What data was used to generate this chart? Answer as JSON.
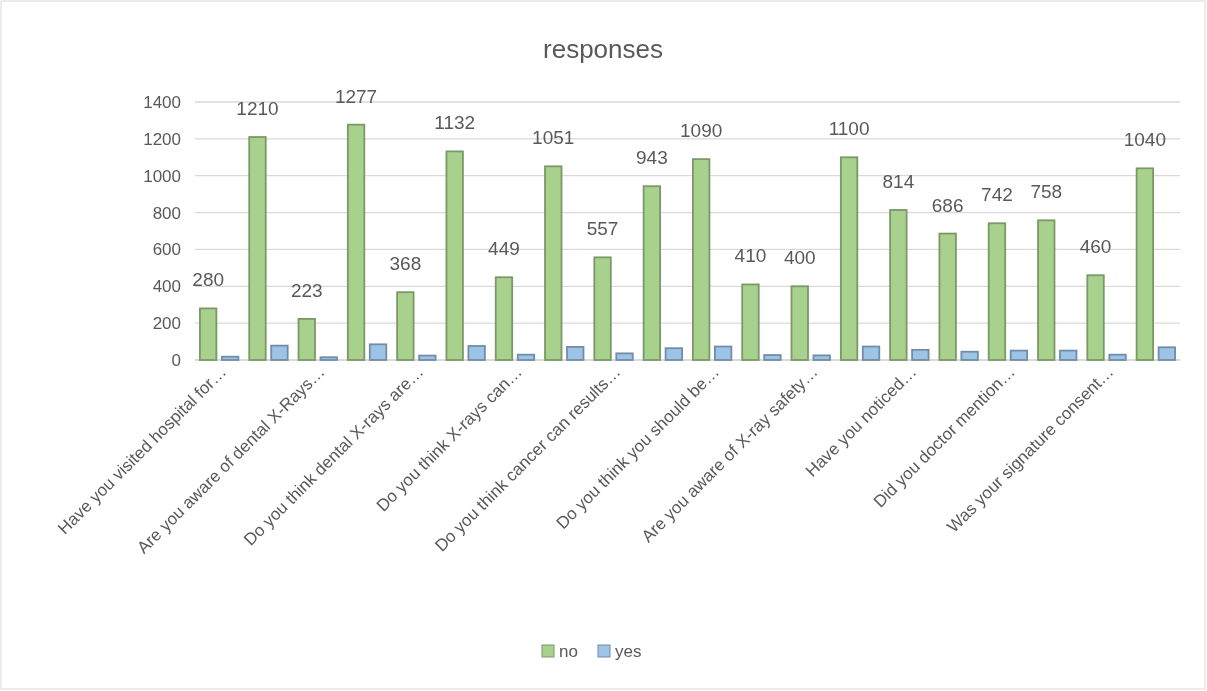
{
  "chart_data": {
    "type": "bar",
    "title": "responses",
    "categories": [
      "Have you visited hospital for…",
      null,
      "Are you aware of dental X-Rays…",
      null,
      "Do you think dental X-rays are…",
      null,
      "Do you think X-rays can…",
      null,
      "Do you think cancer can results…",
      null,
      "Do you think you should be…",
      null,
      "Are you aware of X-ray safety…",
      null,
      "Have you noticed…",
      null,
      "Did you doctor mention…",
      null,
      "Was your signature consent…",
      null
    ],
    "series": [
      {
        "name": "no",
        "color": "#a9d18e",
        "values": [
          280,
          1210,
          223,
          1277,
          368,
          1132,
          449,
          1051,
          557,
          943,
          1090,
          410,
          400,
          1100,
          814,
          686,
          742,
          758,
          460,
          1040
        ],
        "value_labels": [
          "280",
          "1210",
          "223",
          "1277",
          "368",
          "1132",
          "449",
          "1051",
          "557",
          "943",
          "1090",
          "410",
          "400",
          "1100",
          "814",
          "686",
          "742",
          "758",
          "460",
          "1040"
        ]
      },
      {
        "name": "yes",
        "color": "#9dc3e6",
        "values": [
          18,
          78,
          15,
          85,
          24,
          76,
          29,
          71,
          36,
          64,
          73,
          27,
          25,
          73,
          55,
          45,
          51,
          51,
          29,
          69
        ]
      }
    ],
    "ylim": [
      0,
      1400
    ],
    "yticks": [
      0,
      200,
      400,
      600,
      800,
      1000,
      1200,
      1400
    ],
    "grid": "y",
    "legend": "bottom"
  }
}
